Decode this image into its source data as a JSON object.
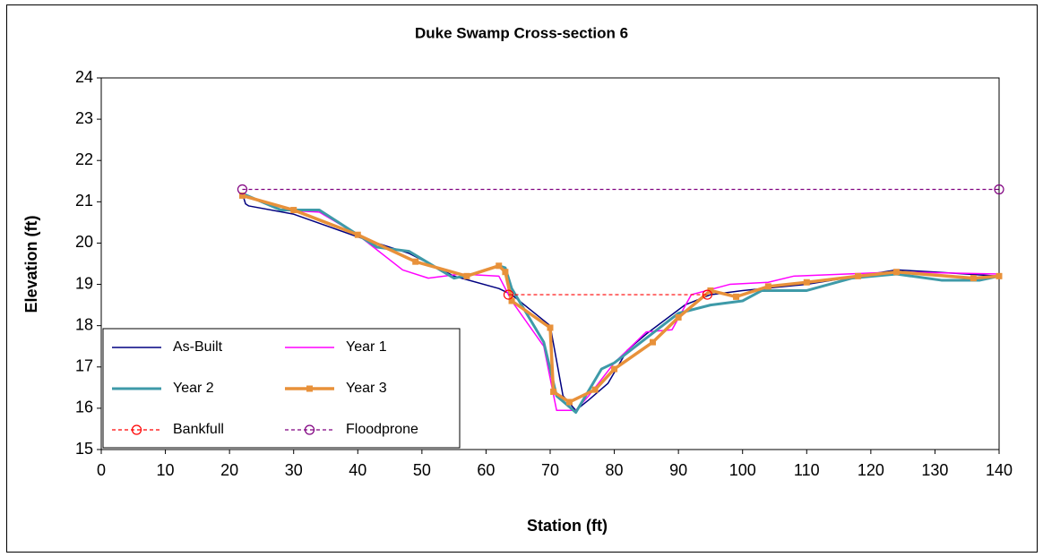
{
  "chart_data": {
    "type": "line",
    "title": "Duke Swamp Cross-section 6",
    "x_label": "Station (ft)",
    "y_label": "Elevation (ft)",
    "xlim": [
      0,
      140
    ],
    "xticks": [
      0,
      10,
      20,
      30,
      40,
      50,
      60,
      70,
      80,
      90,
      100,
      110,
      120,
      130,
      140
    ],
    "ylim": [
      15,
      24
    ],
    "yticks": [
      15,
      16,
      17,
      18,
      19,
      20,
      21,
      22,
      23,
      24
    ],
    "legend": "lower left",
    "series": [
      {
        "name": "As-Built",
        "color": "#000080",
        "width": 1.5,
        "dash": "solid",
        "marker": "none",
        "x": [
          22,
          22.5,
          23,
          30,
          40,
          48,
          55,
          62,
          64,
          70,
          72,
          74,
          76,
          79,
          82,
          85,
          91,
          95,
          100,
          110,
          124,
          130,
          140
        ],
        "values": [
          21.2,
          20.95,
          20.9,
          20.7,
          20.15,
          19.75,
          19.2,
          18.9,
          18.75,
          18.0,
          16.3,
          15.95,
          16.2,
          16.6,
          17.4,
          17.8,
          18.5,
          18.75,
          18.85,
          19.0,
          19.35,
          19.3,
          19.2
        ]
      },
      {
        "name": "Year 1",
        "color": "#ff00ff",
        "width": 1.5,
        "dash": "solid",
        "marker": "none",
        "x": [
          22,
          28,
          34,
          40,
          47,
          51,
          56,
          62,
          64,
          69,
          71,
          74,
          76,
          80,
          85,
          89,
          92,
          98,
          104,
          108,
          124,
          140
        ],
        "values": [
          21.2,
          20.8,
          20.75,
          20.2,
          19.35,
          19.15,
          19.25,
          19.2,
          18.6,
          17.5,
          15.95,
          15.95,
          16.3,
          17.1,
          17.85,
          17.9,
          18.75,
          19.0,
          19.05,
          19.2,
          19.3,
          19.25
        ]
      },
      {
        "name": "Year 2",
        "color": "#3e9aa8",
        "width": 3,
        "dash": "solid",
        "marker": "none",
        "x": [
          22,
          28,
          34,
          40,
          43,
          48,
          55,
          58,
          62,
          63,
          64,
          69,
          71,
          74,
          78,
          80,
          90,
          95,
          100,
          103,
          110,
          117,
          124,
          131,
          137,
          140
        ],
        "values": [
          21.2,
          20.8,
          20.8,
          20.2,
          19.9,
          19.8,
          19.15,
          19.25,
          19.45,
          19.4,
          18.9,
          17.6,
          16.3,
          15.9,
          16.95,
          17.1,
          18.3,
          18.5,
          18.6,
          18.85,
          18.85,
          19.15,
          19.25,
          19.1,
          19.1,
          19.2
        ]
      },
      {
        "name": "Year 3",
        "color": "#e8913a",
        "width": 3.5,
        "dash": "solid",
        "marker": "square",
        "x": [
          22,
          30,
          40,
          49,
          57,
          62,
          63,
          64,
          70,
          70.5,
          73,
          77,
          80,
          86,
          90,
          95,
          99,
          104,
          110,
          118,
          124,
          136,
          140
        ],
        "values": [
          21.15,
          20.8,
          20.2,
          19.55,
          19.2,
          19.45,
          19.3,
          18.6,
          17.95,
          16.4,
          16.15,
          16.45,
          16.95,
          17.6,
          18.2,
          18.85,
          18.7,
          18.95,
          19.05,
          19.2,
          19.3,
          19.15,
          19.2
        ]
      },
      {
        "name": "Bankfull",
        "color": "#ff0000",
        "width": 1.2,
        "dash": "dashed",
        "marker": "circle",
        "x": [
          63.5,
          94.5
        ],
        "values": [
          18.75,
          18.75
        ]
      },
      {
        "name": "Floodprone",
        "color": "#800080",
        "width": 1.2,
        "dash": "dashed",
        "marker": "circle",
        "x": [
          22,
          140
        ],
        "values": [
          21.3,
          21.3
        ]
      }
    ]
  }
}
